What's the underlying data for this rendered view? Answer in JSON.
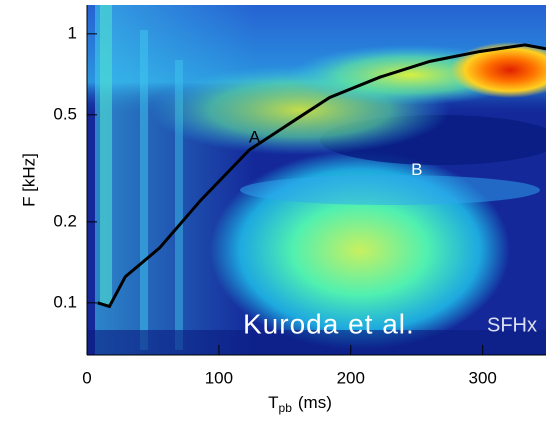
{
  "chart_data": {
    "type": "line",
    "ylabel": "F [kHz]",
    "xlabel": [
      "T",
      "pb",
      "(ms)"
    ],
    "xlim": [
      0,
      348
    ],
    "xticks": [
      0,
      100,
      200,
      300
    ],
    "ylim": [
      0.064,
      1.28
    ],
    "yticks": [
      0.1,
      0.2,
      0.5,
      1
    ],
    "yscale": "log",
    "series": [
      {
        "color": "#000000",
        "x": [
          8,
          17,
          29,
          55,
          86,
          123,
          161,
          184,
          222,
          260,
          298,
          332,
          348
        ],
        "values": [
          0.1,
          0.097,
          0.125,
          0.16,
          0.24,
          0.37,
          0.49,
          0.58,
          0.69,
          0.79,
          0.86,
          0.91,
          0.88
        ]
      }
    ],
    "annotations": [
      {
        "text": "A",
        "x": 127,
        "y": 0.41
      },
      {
        "text": "B",
        "x": 250,
        "y": 0.31
      }
    ],
    "watermark": [
      "Kuroda et al.",
      "SFHx"
    ]
  }
}
